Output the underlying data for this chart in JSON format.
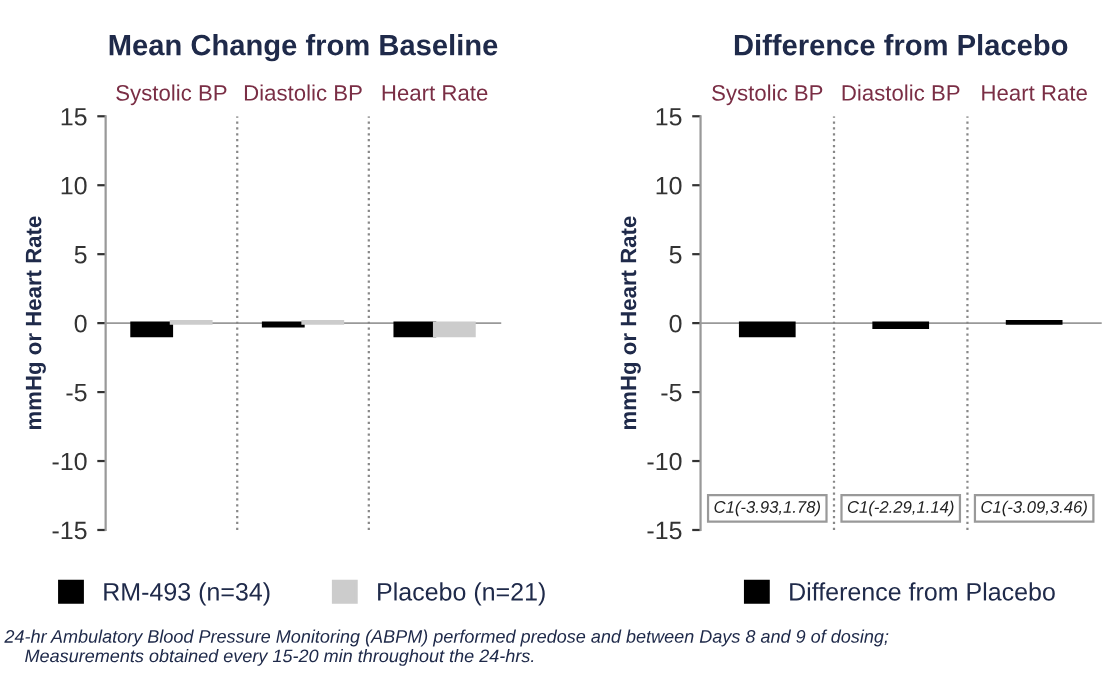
{
  "chart_data": [
    {
      "type": "bar",
      "title": "Mean Change from Baseline",
      "ylabel": "mmHg or Heart Rate",
      "categories": [
        "Systolic BP",
        "Diastolic BP",
        "Heart Rate"
      ],
      "series": [
        {
          "name": "RM-493 (n=34)",
          "color": "#000000",
          "values": [
            -0.9,
            -0.2,
            -0.9
          ]
        },
        {
          "name": "Placebo (n=21)",
          "color": "#cccccc",
          "values": [
            0.1,
            0.1,
            -0.9
          ]
        }
      ],
      "ylim": [
        -15,
        15
      ],
      "yticks": [
        -15,
        -10,
        -5,
        0,
        5,
        10,
        15
      ],
      "legend": "bottom",
      "annotations": [
        "24-hr Ambulatory Blood Pressure Monitoring (ABPM) performed predose and between Days 8 and 9 of dosing;\n    Measurements obtained every 15-20 min throughout the 24-hrs."
      ]
    },
    {
      "type": "bar",
      "title": "Difference from Placebo",
      "ylabel": "mmHg or Heart Rate",
      "categories": [
        "Systolic BP",
        "Diastolic BP",
        "Heart Rate"
      ],
      "series": [
        {
          "name": "Difference from Placebo",
          "color": "#000000",
          "values": [
            -0.9,
            -0.3,
            0.1
          ]
        }
      ],
      "ylim": [
        -15,
        15
      ],
      "yticks": [
        -15,
        -10,
        -5,
        0,
        5,
        10,
        15
      ],
      "legend": "bottom",
      "annotations": [
        "C1(-3.93,1.78)",
        "C1(-2.29,1.14)",
        "C1(-3.09,3.46)"
      ]
    }
  ]
}
